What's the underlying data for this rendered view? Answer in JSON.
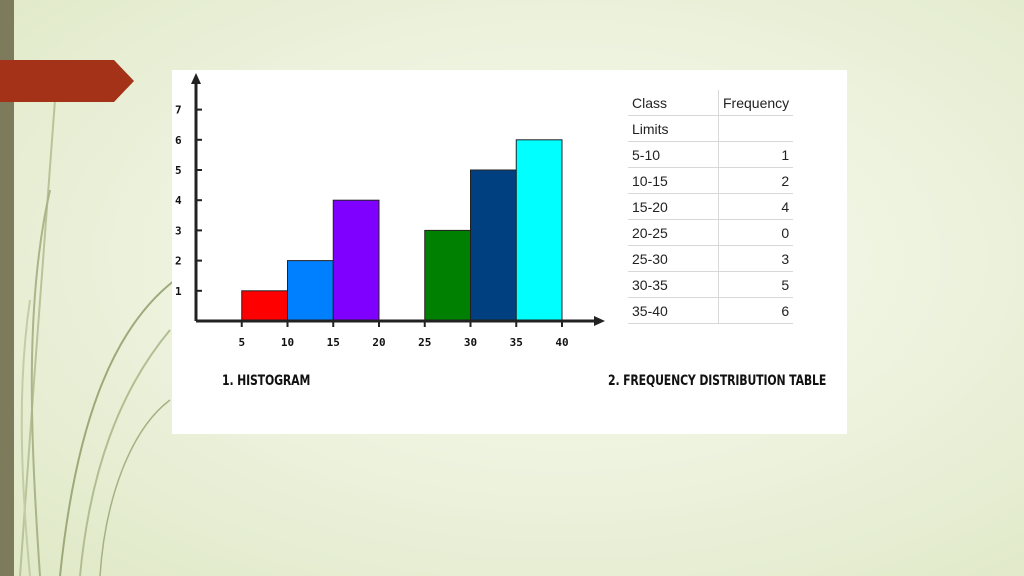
{
  "chart_data": [
    {
      "type": "bar",
      "title": "1. HISTOGRAM",
      "xlabel": "",
      "ylabel": "",
      "x_ticks": [
        "5",
        "10",
        "15",
        "20",
        "25",
        "30",
        "35",
        "40"
      ],
      "y_ticks": [
        "1",
        "2",
        "3",
        "4",
        "5",
        "6",
        "7"
      ],
      "ylim": [
        0,
        7
      ],
      "xlim": [
        0,
        40
      ],
      "bins": [
        {
          "from": 5,
          "to": 10,
          "value": 1,
          "color": "#ff0000"
        },
        {
          "from": 10,
          "to": 15,
          "value": 2,
          "color": "#0080ff"
        },
        {
          "from": 15,
          "to": 20,
          "value": 4,
          "color": "#8000ff"
        },
        {
          "from": 20,
          "to": 25,
          "value": 0,
          "color": "#ffffff"
        },
        {
          "from": 25,
          "to": 30,
          "value": 3,
          "color": "#008000"
        },
        {
          "from": 30,
          "to": 35,
          "value": 5,
          "color": "#004080"
        },
        {
          "from": 35,
          "to": 40,
          "value": 6,
          "color": "#00ffff"
        }
      ]
    },
    {
      "type": "table",
      "title": "2. FREQUENCY DISTRIBUTION TABLE",
      "columns": [
        "Class",
        "Frequency"
      ],
      "subheader": [
        "Limits",
        ""
      ],
      "rows": [
        [
          "5-10",
          "1"
        ],
        [
          "10-15",
          "2"
        ],
        [
          "15-20",
          "4"
        ],
        [
          "20-25",
          "0"
        ],
        [
          "25-30",
          "3"
        ],
        [
          "30-35",
          "5"
        ],
        [
          "35-40",
          "6"
        ]
      ]
    }
  ],
  "captions": {
    "histogram": "1. HISTOGRAM",
    "table": "2. FREQUENCY DISTRIBUTION TABLE"
  },
  "colors": {
    "accent_arrow": "#a33218",
    "left_bar": "#7d7b5c",
    "background": "#eef3df"
  }
}
